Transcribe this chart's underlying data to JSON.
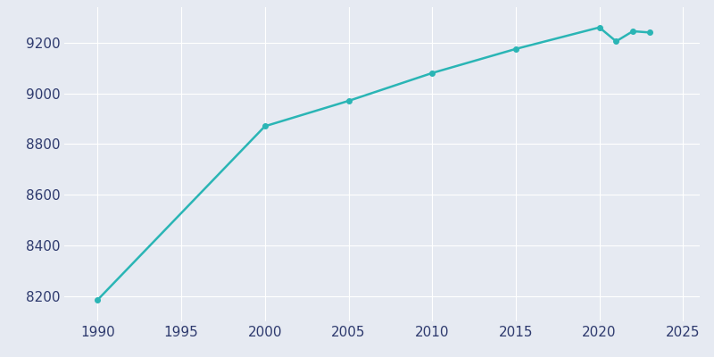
{
  "years": [
    1990,
    2000,
    2005,
    2010,
    2015,
    2020,
    2021,
    2022,
    2023
  ],
  "population": [
    8185,
    8870,
    8970,
    9080,
    9175,
    9260,
    9205,
    9245,
    9240
  ],
  "line_color": "#2ab5b5",
  "marker": "o",
  "marker_size": 4,
  "line_width": 1.8,
  "background_color": "#e6eaf2",
  "grid_color": "#ffffff",
  "tick_label_color": "#2e3a6e",
  "xlim": [
    1988,
    2026
  ],
  "ylim": [
    8100,
    9340
  ],
  "yticks": [
    8200,
    8400,
    8600,
    8800,
    9000,
    9200
  ],
  "xticks": [
    1990,
    1995,
    2000,
    2005,
    2010,
    2015,
    2020,
    2025
  ],
  "tick_fontsize": 11
}
